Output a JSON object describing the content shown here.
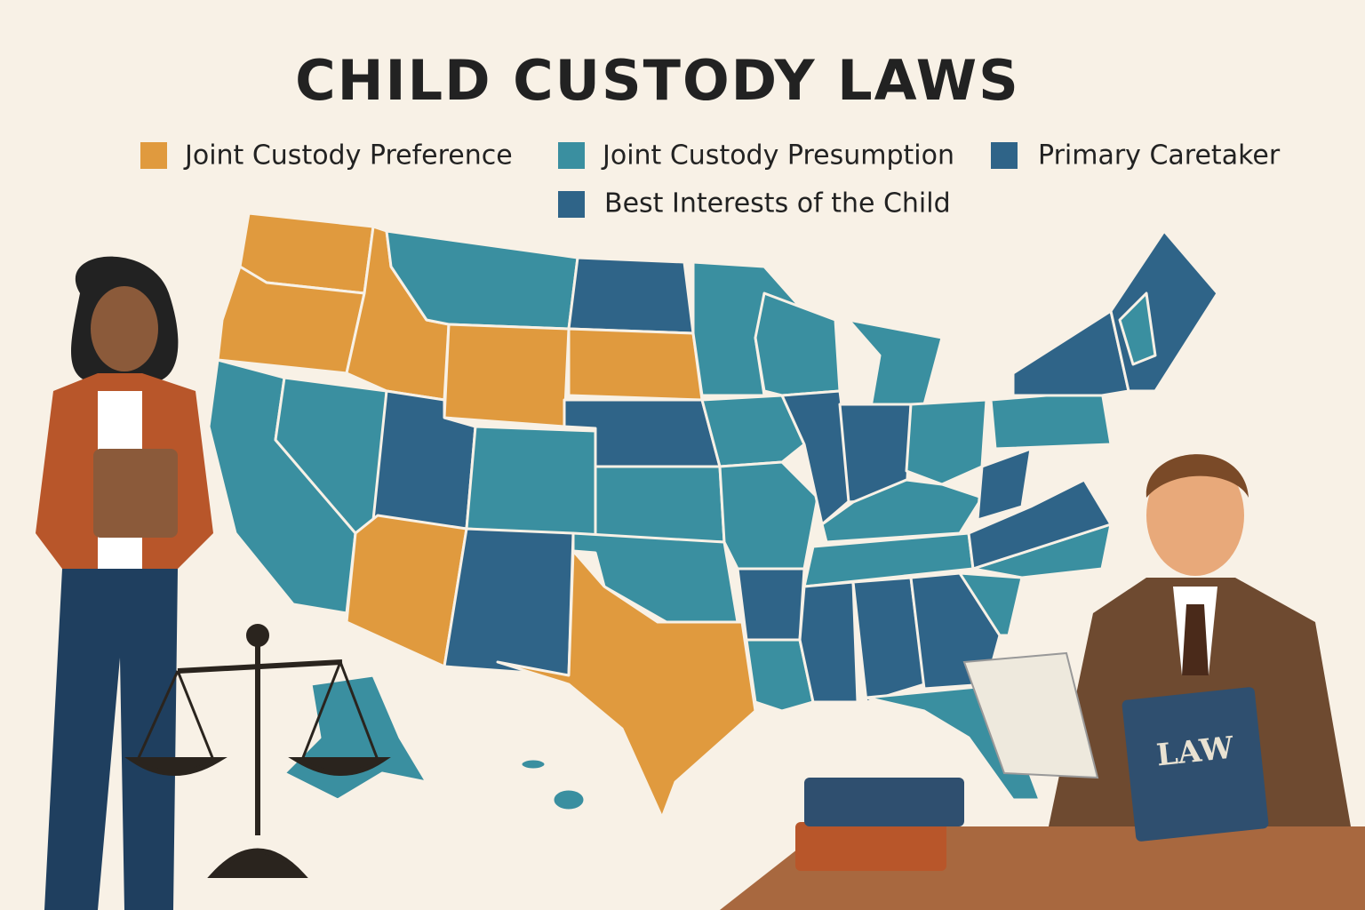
{
  "title": "CHILD CUSTODY LAWS",
  "legend": [
    {
      "label": "Joint Custody Preference",
      "color": "#e09a3e"
    },
    {
      "label": "Joint Custody Presumption",
      "color": "#3a8fa0"
    },
    {
      "label": "Primary Caretaker",
      "color": "#2f6488"
    },
    {
      "label": "Best Interests of the Child",
      "color": "#2f6488"
    }
  ],
  "book_label": "LAW"
}
